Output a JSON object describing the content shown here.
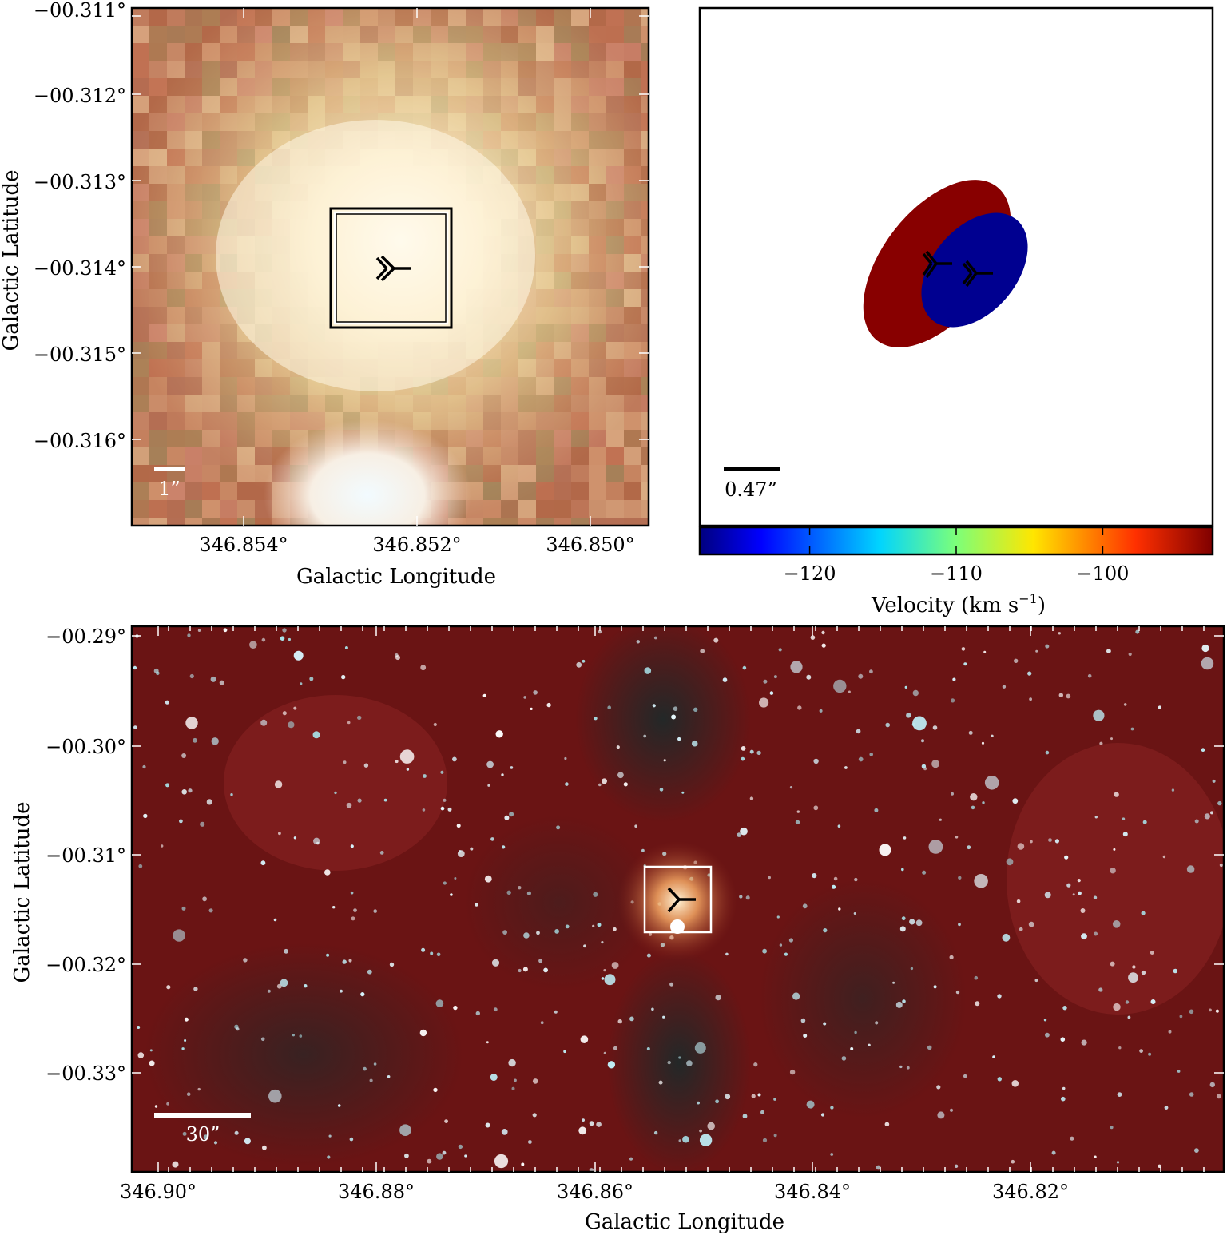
{
  "panels": {
    "top_left": {
      "xlabel": "Galactic Longitude",
      "ylabel": "Galactic Latitude",
      "xticks": [
        "346.854°",
        "346.852°",
        "346.850°"
      ],
      "yticks": [
        "−00.311°",
        "−00.312°",
        "−00.313°",
        "−00.314°",
        "−00.315°",
        "−00.316°"
      ],
      "scalebar_label": "1”",
      "image_colors": {
        "core": "#fff6df",
        "mid": "#e8d7a6",
        "edge": "#b86c4c",
        "lower_core": "#f4fbff"
      }
    },
    "top_right": {
      "scalebar_label": "0.47”",
      "colorbar_label": "Velocity (km s",
      "colorbar_label_sup": "−1",
      "colorbar_label_end": ")",
      "colorbar_ticks": [
        "−120",
        "−110",
        "−100"
      ],
      "colorbar_range": [
        -127.5,
        -92.5
      ],
      "colorbar_tick_values": [
        -120,
        -110,
        -100
      ],
      "colors": {
        "red_ellipse": "#880000",
        "blue_ellipse": "#000090"
      }
    },
    "bottom": {
      "xlabel": "Galactic Longitude",
      "ylabel": "Galactic Latitude",
      "xticks": [
        "346.90°",
        "346.88°",
        "346.86°",
        "346.84°",
        "346.82°"
      ],
      "yticks": [
        "−00.29°",
        "−00.30°",
        "−00.31°",
        "−00.32°",
        "−00.33°"
      ],
      "scalebar_label": "30”",
      "image_colors": {
        "background": "#6a1212",
        "dark_lane": "#1f2a28",
        "star": "#c9f4ff",
        "glow": "#ffcf80"
      }
    }
  }
}
